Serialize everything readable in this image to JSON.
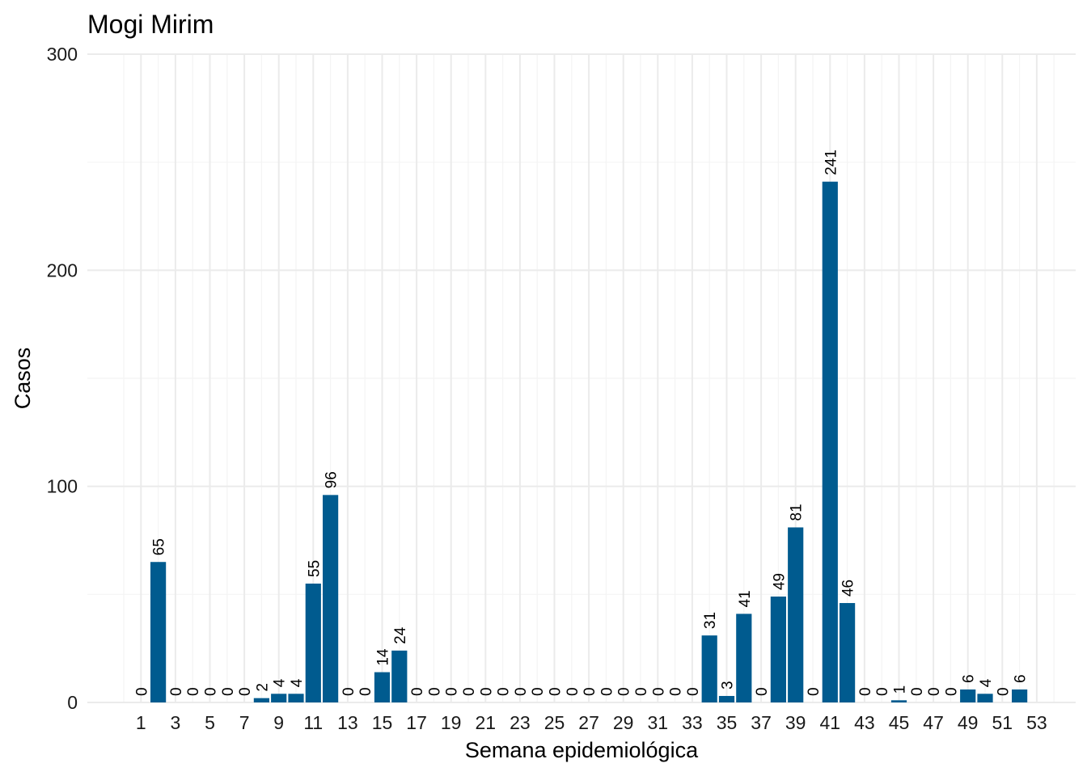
{
  "chart_data": {
    "type": "bar",
    "title": "Mogi Mirim",
    "xlabel": "Semana epidemiológica",
    "ylabel": "Casos",
    "ylim": [
      0,
      300
    ],
    "yticks": [
      0,
      100,
      200,
      300
    ],
    "xticks": [
      1,
      3,
      5,
      7,
      9,
      11,
      13,
      15,
      17,
      19,
      21,
      23,
      25,
      27,
      29,
      31,
      33,
      35,
      37,
      39,
      41,
      43,
      45,
      47,
      49,
      51,
      53
    ],
    "categories": [
      2,
      3,
      4,
      5,
      6,
      7,
      8,
      9,
      10,
      11,
      12,
      13,
      14,
      15,
      16,
      17,
      18,
      19,
      20,
      21,
      22,
      23,
      24,
      25,
      26,
      27,
      28,
      29,
      30,
      31,
      32,
      33,
      34,
      35,
      36,
      37,
      38,
      39,
      40,
      41,
      42,
      43,
      44,
      45,
      46,
      47,
      48,
      49,
      50,
      51,
      52
    ],
    "values": [
      65,
      0,
      0,
      0,
      0,
      0,
      2,
      4,
      4,
      55,
      96,
      0,
      0,
      14,
      24,
      0,
      0,
      0,
      0,
      0,
      0,
      0,
      0,
      0,
      0,
      0,
      0,
      0,
      0,
      0,
      0,
      0,
      31,
      3,
      41,
      0,
      49,
      81,
      0,
      241,
      46,
      0,
      0,
      1,
      0,
      0,
      0,
      6,
      4,
      0,
      6
    ],
    "extra_labels": [
      {
        "x": 1,
        "label": "0"
      }
    ],
    "grid": true,
    "bar_color": "#005b8f"
  }
}
